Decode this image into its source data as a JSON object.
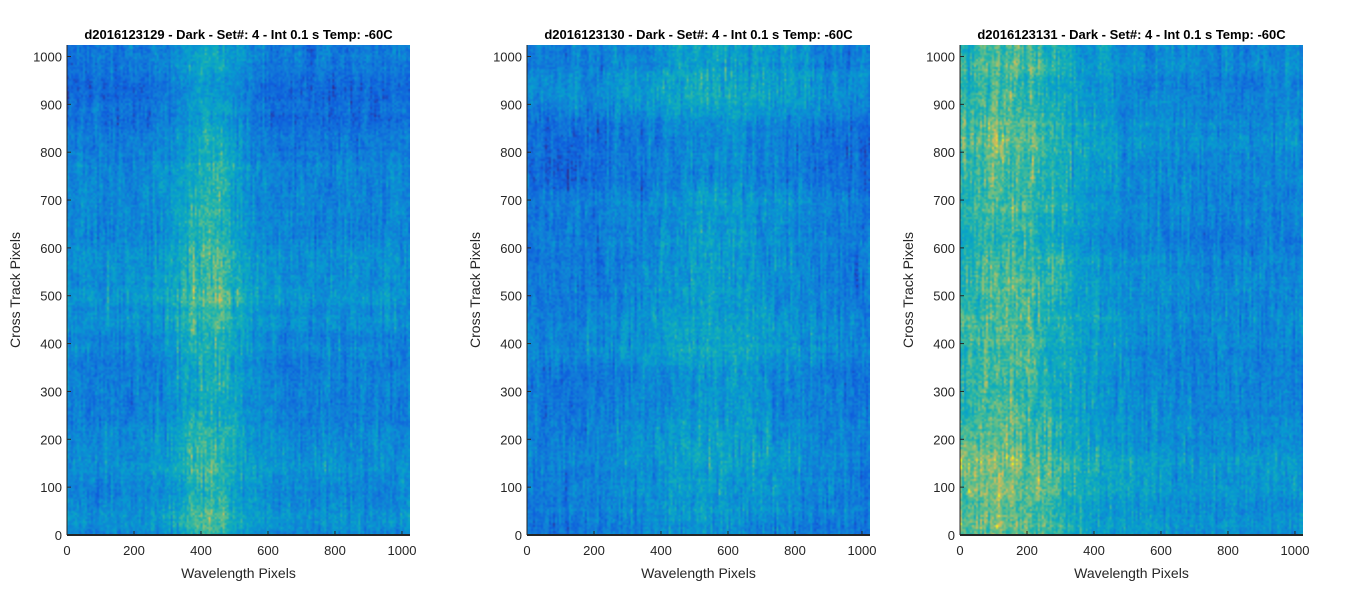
{
  "chart_data": [
    {
      "type": "heatmap",
      "title": "d2016123129 - Dark - Set#: 4 - Int 0.1 s Temp: -60C",
      "xlabel": "Wavelength Pixels",
      "ylabel": "Cross Track Pixels",
      "xlim": [
        0,
        1024
      ],
      "ylim": [
        0,
        1024
      ],
      "x_ticks": [
        0,
        200,
        400,
        600,
        800,
        1000
      ],
      "y_ticks": [
        0,
        100,
        200,
        300,
        400,
        500,
        600,
        700,
        800,
        900,
        1000
      ],
      "colormap": "parula",
      "texture": {
        "seed": 11,
        "band_center": 420,
        "band_width": 110,
        "band_strength": 0.28,
        "base": 0.36,
        "noise": 0.22
      }
    },
    {
      "type": "heatmap",
      "title": "d2016123130 - Dark - Set#: 4 - Int 0.1 s Temp: -60C",
      "xlabel": "Wavelength Pixels",
      "ylabel": "Cross Track Pixels",
      "xlim": [
        0,
        1024
      ],
      "ylim": [
        0,
        1024
      ],
      "x_ticks": [
        0,
        200,
        400,
        600,
        800,
        1000
      ],
      "y_ticks": [
        0,
        100,
        200,
        300,
        400,
        500,
        600,
        700,
        800,
        900,
        1000
      ],
      "colormap": "parula",
      "texture": {
        "seed": 23,
        "band_center": 560,
        "band_width": 260,
        "band_strength": 0.18,
        "base": 0.38,
        "noise": 0.24
      }
    },
    {
      "type": "heatmap",
      "title": "d2016123131 - Dark - Set#: 4 - Int 0.1 s Temp: -60C",
      "xlabel": "Wavelength Pixels",
      "ylabel": "Cross Track Pixels",
      "xlim": [
        0,
        1024
      ],
      "ylim": [
        0,
        1024
      ],
      "x_ticks": [
        0,
        200,
        400,
        600,
        800,
        1000
      ],
      "y_ticks": [
        0,
        100,
        200,
        300,
        400,
        500,
        600,
        700,
        800,
        900,
        1000
      ],
      "colormap": "parula",
      "texture": {
        "seed": 37,
        "band_center": 120,
        "band_width": 260,
        "band_strength": 0.34,
        "base": 0.4,
        "noise": 0.22
      }
    }
  ]
}
